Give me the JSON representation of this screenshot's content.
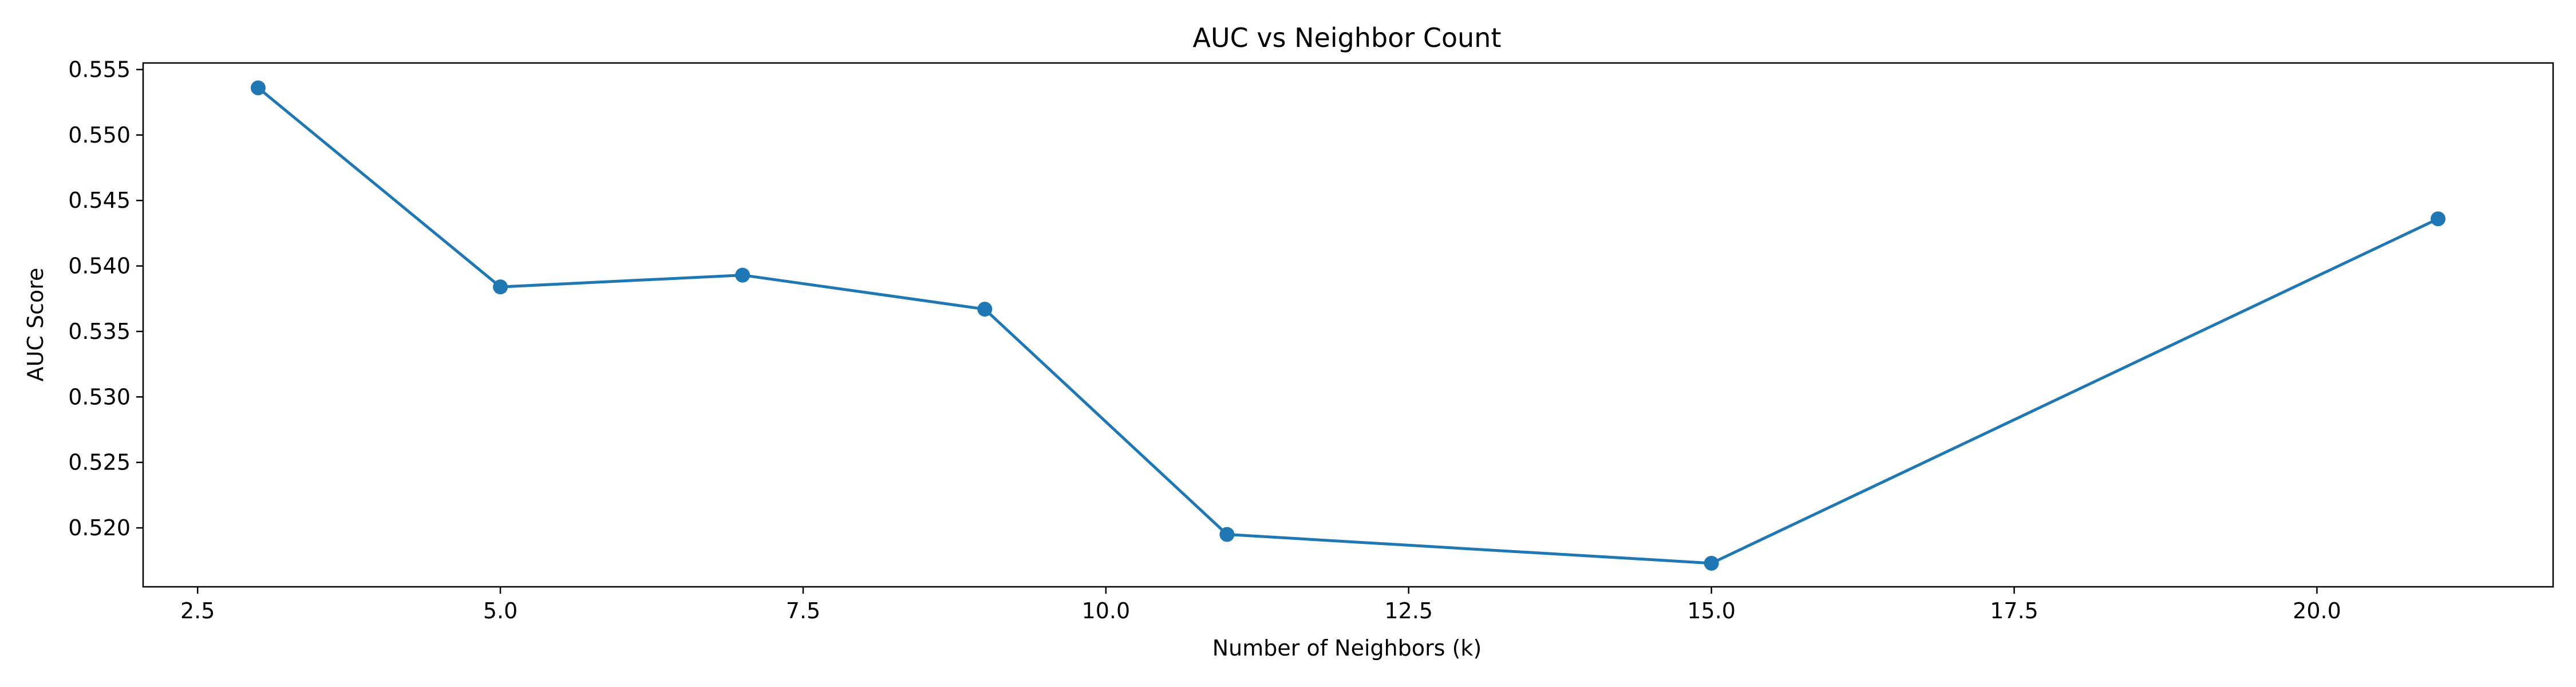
{
  "chart_data": {
    "type": "line",
    "title": "AUC vs Neighbor Count",
    "xlabel": "Number of Neighbors (k)",
    "ylabel": "AUC Score",
    "xlim": [
      2.05,
      21.95
    ],
    "ylim": [
      0.5155,
      0.5555
    ],
    "x_ticks": [
      2.5,
      5.0,
      7.5,
      10.0,
      12.5,
      15.0,
      17.5,
      20.0
    ],
    "y_ticks": [
      0.52,
      0.525,
      0.53,
      0.535,
      0.54,
      0.545,
      0.55,
      0.555
    ],
    "grid": false,
    "series": [
      {
        "color": "#1f77b4",
        "marker": "circle",
        "x": [
          3,
          5,
          7,
          9,
          11,
          15,
          21
        ],
        "y": [
          0.5536,
          0.5384,
          0.5393,
          0.5367,
          0.5195,
          0.5173,
          0.5436
        ]
      }
    ]
  }
}
